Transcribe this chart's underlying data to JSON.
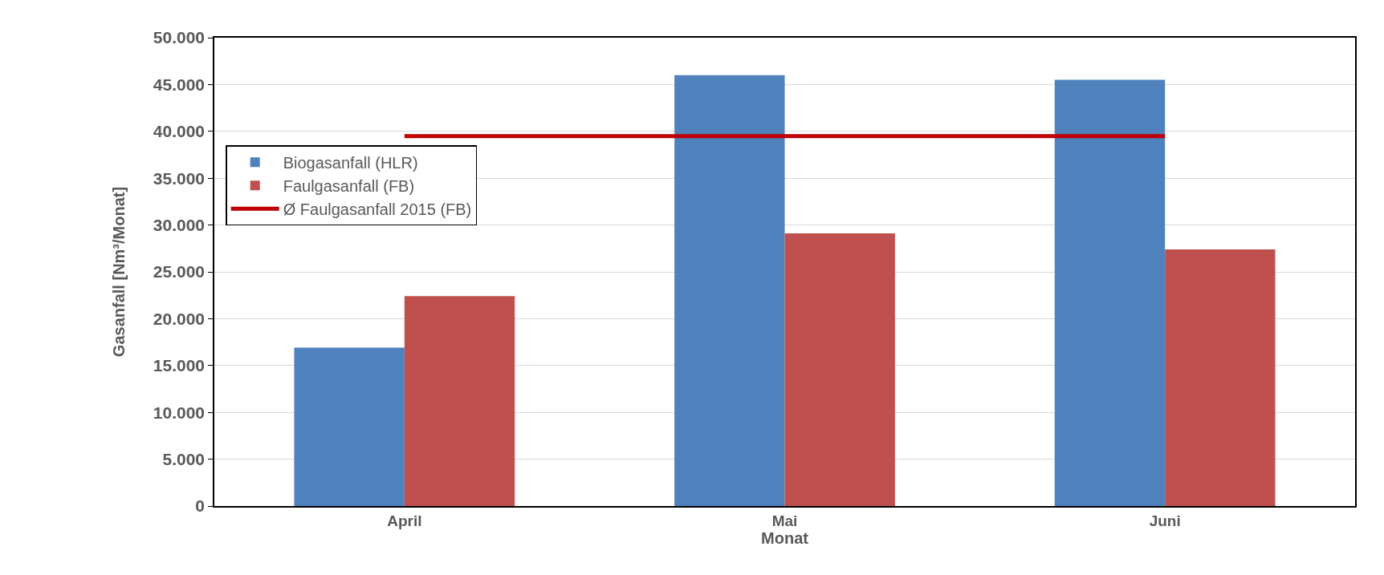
{
  "chart_data": {
    "type": "bar",
    "xlabel": "Monat",
    "ylabel": "Gasanfall [Nm³/Monat]",
    "categories": [
      "April",
      "Mai",
      "Juni"
    ],
    "series": [
      {
        "name": "Biogasanfall (HLR)",
        "color": "#4f81bd",
        "values": [
          16900,
          46000,
          45500
        ]
      },
      {
        "name": "Faulgasanfall (FB)",
        "color": "#c0504d",
        "values": [
          22400,
          29100,
          27400
        ]
      },
      {
        "name": "Ø Faulgasanfall 2015 (FB)",
        "type": "line",
        "color": "#c00000",
        "values": [
          39500,
          39500,
          39500
        ],
        "marker": "none",
        "line_style": "solid"
      }
    ],
    "ylim": [
      0,
      50000
    ],
    "yticks": [
      {
        "value": 0,
        "label": "0"
      },
      {
        "value": 5000,
        "label": "5.000"
      },
      {
        "value": 10000,
        "label": "10.000"
      },
      {
        "value": 15000,
        "label": "15.000"
      },
      {
        "value": 20000,
        "label": "20.000"
      },
      {
        "value": 25000,
        "label": "25.000"
      },
      {
        "value": 30000,
        "label": "30.000"
      },
      {
        "value": 35000,
        "label": "35.000"
      },
      {
        "value": 40000,
        "label": "40.000"
      },
      {
        "value": 45000,
        "label": "45.000"
      },
      {
        "value": 50000,
        "label": "50.000"
      }
    ],
    "grid": "y",
    "legend": "left"
  }
}
